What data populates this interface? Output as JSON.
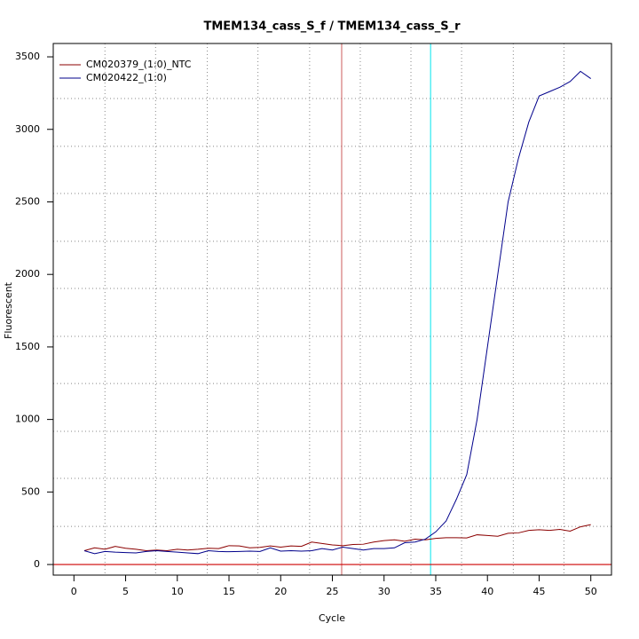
{
  "chart_data": {
    "type": "line",
    "title": "TMEM134_cass_S_f / TMEM134_cass_S_r",
    "xlabel": "Cycle",
    "ylabel": "Fluorescent",
    "x": [
      1,
      2,
      3,
      4,
      5,
      6,
      7,
      8,
      9,
      10,
      11,
      12,
      13,
      14,
      15,
      16,
      17,
      18,
      19,
      20,
      21,
      22,
      23,
      24,
      25,
      26,
      27,
      28,
      29,
      30,
      31,
      32,
      33,
      34,
      35,
      36,
      37,
      38,
      39,
      40,
      41,
      42,
      43,
      44,
      45,
      46,
      47,
      48,
      49,
      50
    ],
    "series": [
      {
        "name": "CM020379_(1:0)_NTC",
        "color": "#8b0000",
        "values": [
          95,
          115,
          105,
          125,
          112,
          105,
          95,
          100,
          95,
          105,
          100,
          105,
          112,
          110,
          130,
          128,
          115,
          118,
          128,
          120,
          128,
          125,
          155,
          145,
          135,
          130,
          138,
          140,
          155,
          165,
          170,
          160,
          175,
          170,
          180,
          185,
          185,
          183,
          205,
          200,
          195,
          215,
          218,
          235,
          240,
          235,
          242,
          230,
          260,
          275
        ]
      },
      {
        "name": "CM020422_(1:0)",
        "color": "#00008b",
        "values": [
          95,
          75,
          90,
          85,
          82,
          80,
          90,
          95,
          90,
          85,
          80,
          75,
          95,
          90,
          88,
          90,
          92,
          90,
          115,
          92,
          95,
          92,
          95,
          110,
          100,
          120,
          110,
          100,
          110,
          110,
          115,
          150,
          155,
          175,
          225,
          300,
          450,
          620,
          1000,
          1500,
          2000,
          2500,
          2800,
          3050,
          3230,
          3260,
          3290,
          3330,
          3400,
          3350
        ]
      }
    ],
    "xlim": [
      -2,
      52
    ],
    "ylim": [
      -73,
      3592
    ],
    "xticks": [
      0,
      5,
      10,
      15,
      20,
      25,
      30,
      35,
      40,
      45,
      50
    ],
    "yticks": [
      0,
      500,
      1000,
      1500,
      2000,
      2500,
      3000,
      3500
    ],
    "xgrid": [
      3,
      7.9,
      12.9,
      17.8,
      22.8,
      27.7,
      32.6,
      37.5,
      42.5,
      47.4
    ],
    "ygrid": [
      263,
      594,
      918,
      1248,
      1573,
      1903,
      2228,
      2558,
      2883,
      3213
    ],
    "vlines": [
      {
        "value": 25.9,
        "color": "#cd5c5c"
      },
      {
        "value": 34.5,
        "color": "#00e5ee"
      }
    ],
    "hlines": [
      {
        "value": 0,
        "color": "#cd0000"
      }
    ],
    "legend": "top-left"
  }
}
